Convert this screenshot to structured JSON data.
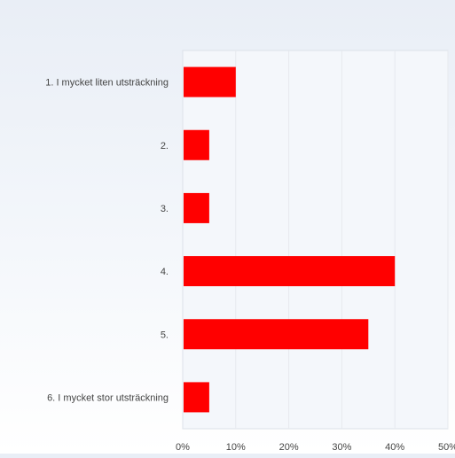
{
  "chart_data": {
    "type": "bar",
    "orientation": "horizontal",
    "categories": [
      "1. I mycket liten utsträckning",
      "2.",
      "3.",
      "4.",
      "5.",
      "6. I mycket stor utsträckning"
    ],
    "values": [
      10,
      5,
      5,
      40,
      35,
      5
    ],
    "value_unit": "%",
    "xlim": [
      0,
      50
    ],
    "x_ticks": [
      "0%",
      "10%",
      "20%",
      "30%",
      "40%",
      "50%"
    ],
    "title": "",
    "xlabel": "",
    "ylabel": "",
    "grid": true,
    "bar_color": "#ff0000",
    "plot_background": "#f4f7fb",
    "grid_color": "#e6e9ee",
    "legend": "none"
  }
}
